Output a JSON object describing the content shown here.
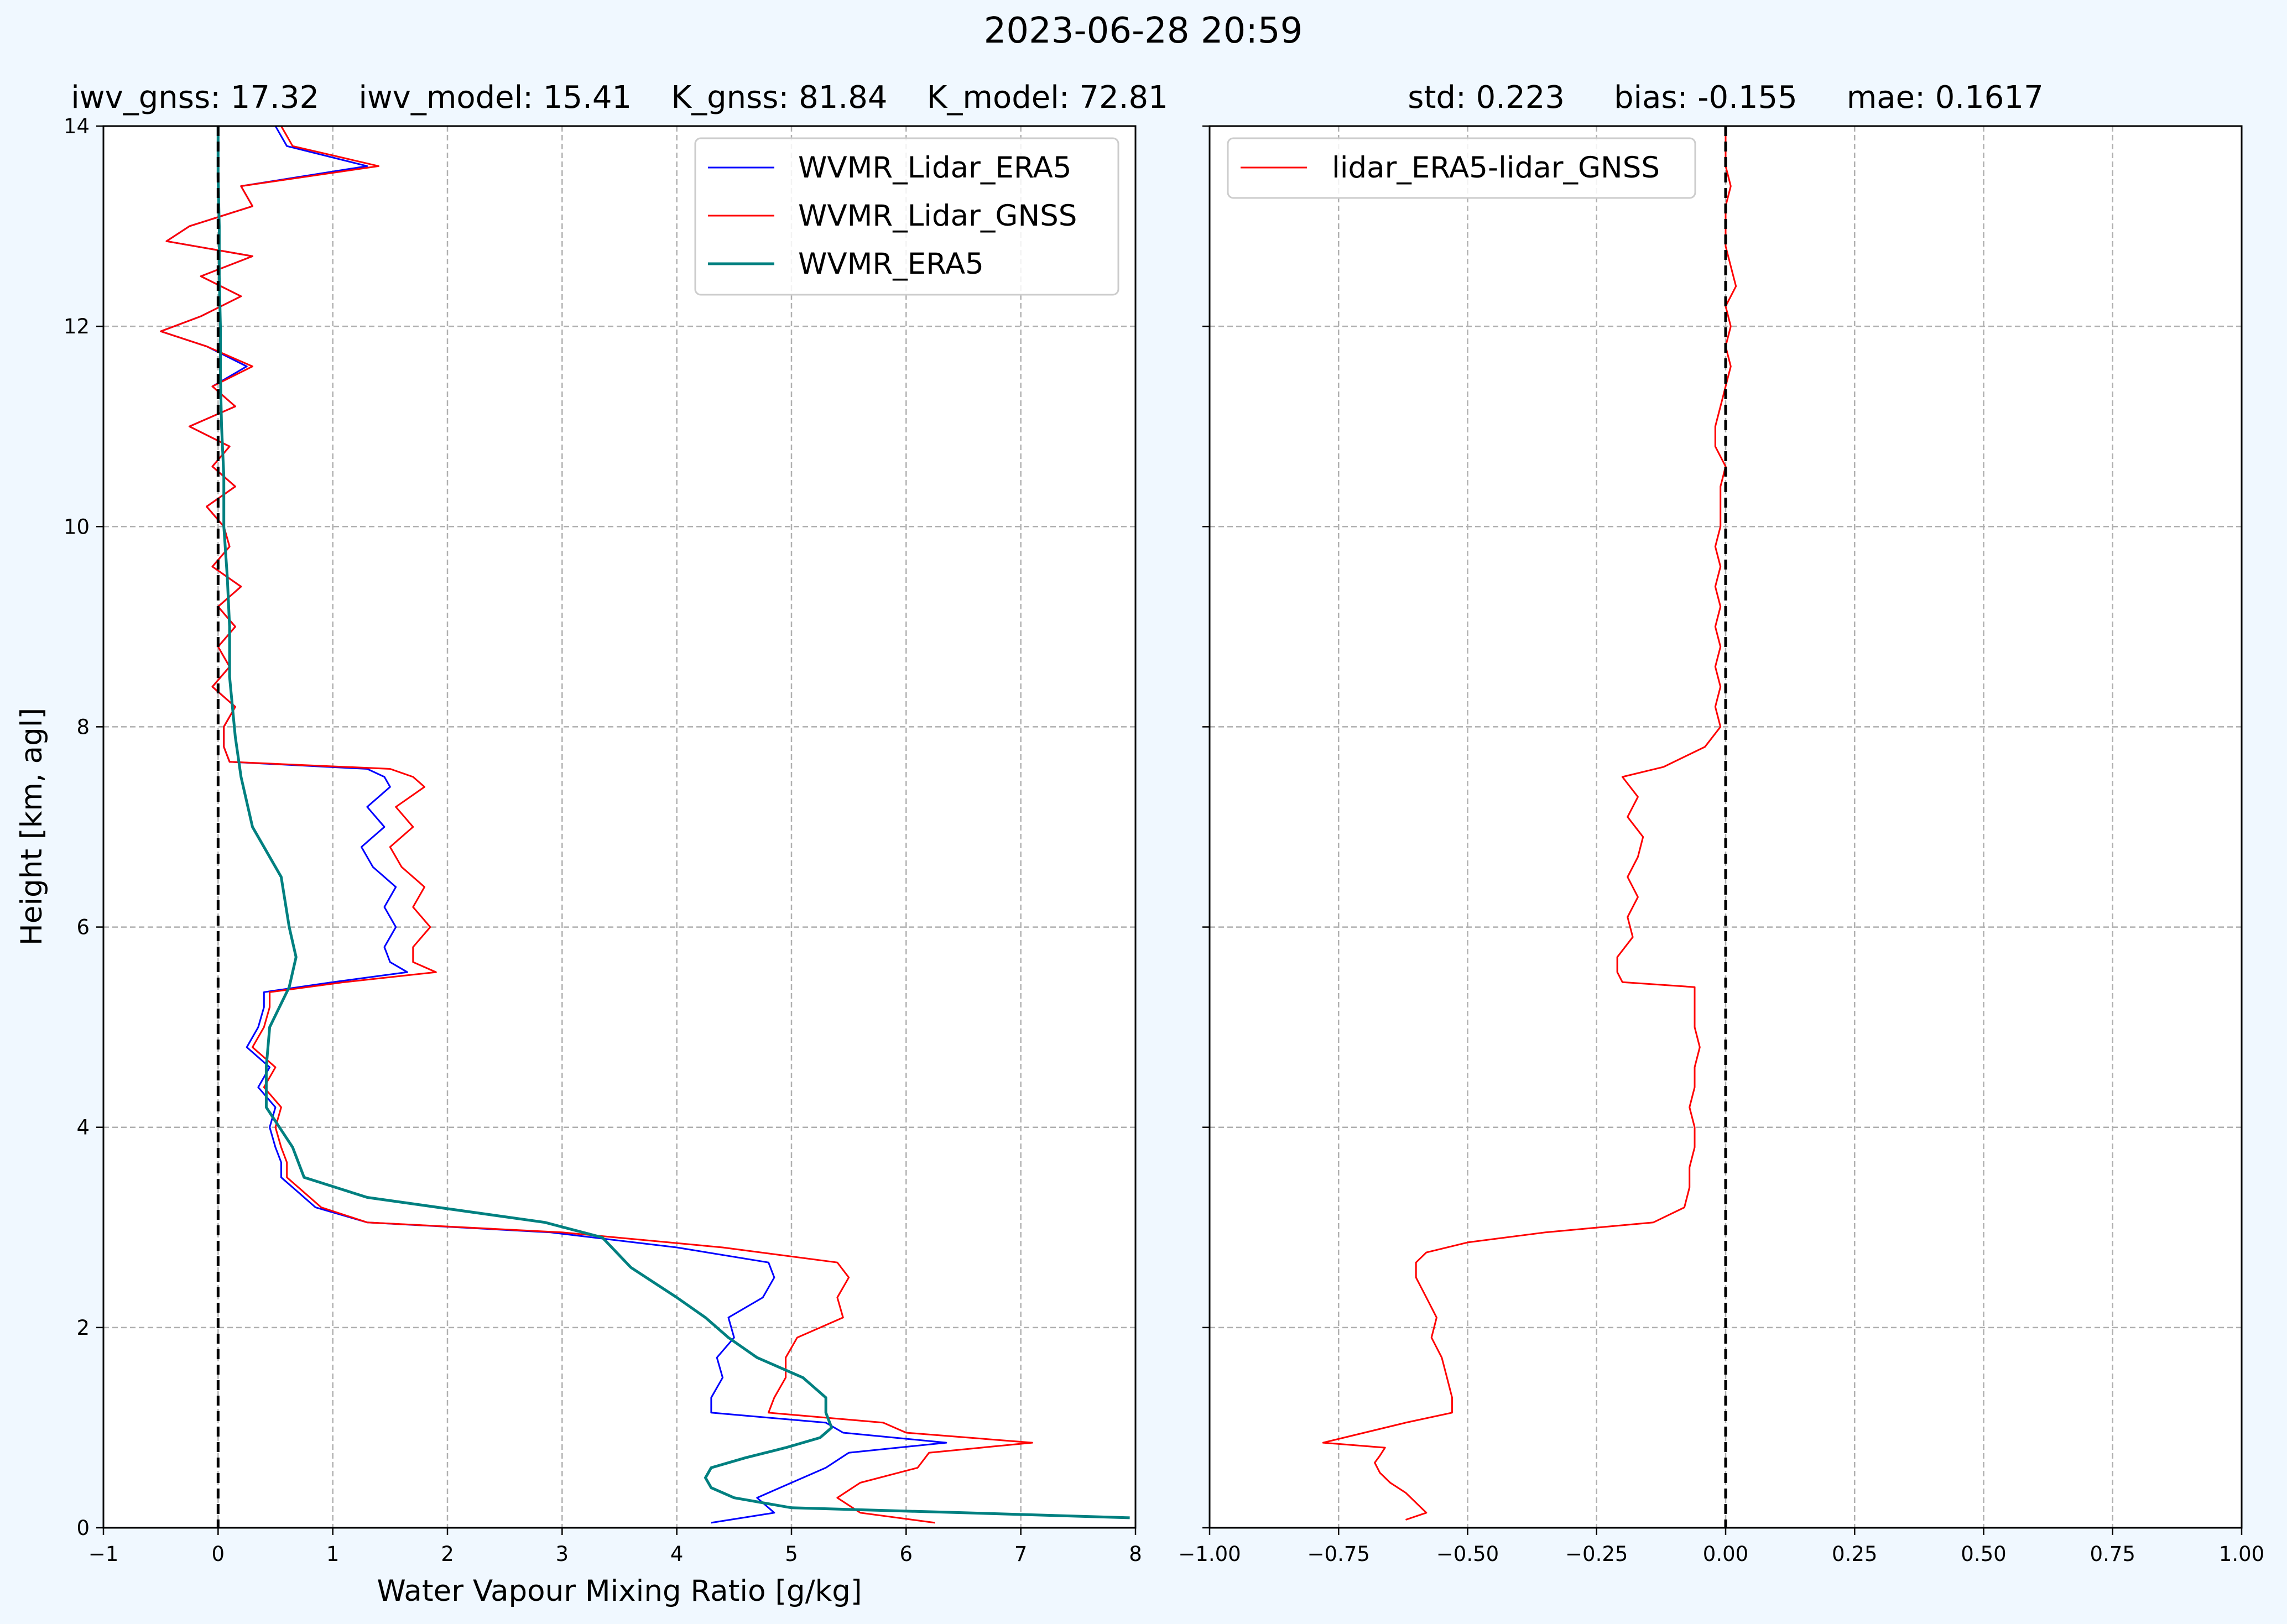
{
  "figure": {
    "suptitle": "2023-06-28 20:59",
    "background": "#f0f8ff"
  },
  "chart_data": [
    {
      "type": "line",
      "title": "iwv_gnss: 17.32    iwv_model: 15.41    K_gnss: 81.84    K_model: 72.81",
      "xlabel": "Water Vapour Mixing Ratio [g/kg]",
      "ylabel": "Height [km, agl]",
      "xlim": [
        -1,
        8
      ],
      "ylim": [
        0,
        14
      ],
      "xticks": [
        -1,
        0,
        1,
        2,
        3,
        4,
        5,
        6,
        7,
        8
      ],
      "yticks": [
        0,
        2,
        4,
        6,
        8,
        10,
        12,
        14
      ],
      "grid": true,
      "legend": "top-right",
      "reference_line_x": 0,
      "series": [
        {
          "name": "WVMR_Lidar_ERA5",
          "color": "#0000ff",
          "height_km": [
            0.05,
            0.15,
            0.3,
            0.45,
            0.6,
            0.75,
            0.85,
            0.95,
            1.05,
            1.15,
            1.3,
            1.5,
            1.7,
            1.9,
            2.1,
            2.3,
            2.5,
            2.65,
            2.8,
            2.95,
            3.05,
            3.2,
            3.35,
            3.5,
            3.65,
            3.8,
            4.0,
            4.2,
            4.4,
            4.6,
            4.8,
            5.0,
            5.2,
            5.35,
            5.45,
            5.55,
            5.65,
            5.8,
            6.0,
            6.2,
            6.4,
            6.6,
            6.8,
            7.0,
            7.2,
            7.4,
            7.5,
            7.58,
            7.65,
            7.8,
            8.0,
            8.2,
            8.4,
            8.6,
            8.8,
            9.0,
            9.2,
            9.4,
            9.6,
            9.8,
            10.0,
            10.2,
            10.4,
            10.6,
            10.8,
            11.0,
            11.2,
            11.4,
            11.6,
            11.8,
            11.95,
            12.1,
            12.3,
            12.5,
            12.7,
            12.85,
            13.0,
            13.2,
            13.4,
            13.6,
            13.8,
            14.0
          ],
          "wvmr": [
            4.3,
            4.85,
            4.7,
            5.0,
            5.3,
            5.5,
            6.35,
            5.45,
            5.3,
            4.3,
            4.3,
            4.4,
            4.35,
            4.5,
            4.45,
            4.75,
            4.85,
            4.8,
            4.0,
            2.9,
            1.3,
            0.85,
            0.7,
            0.55,
            0.55,
            0.5,
            0.45,
            0.5,
            0.35,
            0.45,
            0.25,
            0.35,
            0.4,
            0.4,
            1.0,
            1.65,
            1.5,
            1.45,
            1.55,
            1.45,
            1.55,
            1.35,
            1.25,
            1.45,
            1.3,
            1.5,
            1.45,
            1.3,
            0.1,
            0.05,
            0.05,
            0.15,
            -0.05,
            0.1,
            0.0,
            0.15,
            0.0,
            0.2,
            -0.05,
            0.1,
            0.05,
            -0.1,
            0.15,
            -0.05,
            0.1,
            -0.25,
            0.15,
            -0.05,
            0.25,
            -0.1,
            -0.5,
            -0.15,
            0.2,
            -0.15,
            0.3,
            -0.45,
            -0.25,
            0.3,
            0.2,
            1.3,
            0.6,
            0.5
          ]
        },
        {
          "name": "WVMR_Lidar_GNSS",
          "color": "#ff0000",
          "height_km": [
            0.05,
            0.15,
            0.3,
            0.45,
            0.6,
            0.75,
            0.85,
            0.95,
            1.05,
            1.15,
            1.3,
            1.5,
            1.7,
            1.9,
            2.1,
            2.3,
            2.5,
            2.65,
            2.8,
            2.95,
            3.05,
            3.2,
            3.35,
            3.5,
            3.65,
            3.8,
            4.0,
            4.2,
            4.4,
            4.6,
            4.8,
            5.0,
            5.2,
            5.35,
            5.45,
            5.55,
            5.65,
            5.8,
            6.0,
            6.2,
            6.4,
            6.6,
            6.8,
            7.0,
            7.2,
            7.4,
            7.5,
            7.58,
            7.65,
            7.8,
            8.0,
            8.2,
            8.4,
            8.6,
            8.8,
            9.0,
            9.2,
            9.4,
            9.6,
            9.8,
            10.0,
            10.2,
            10.4,
            10.6,
            10.8,
            11.0,
            11.2,
            11.4,
            11.6,
            11.8,
            11.95,
            12.1,
            12.3,
            12.5,
            12.7,
            12.85,
            13.0,
            13.2,
            13.4,
            13.6,
            13.8,
            14.0
          ],
          "wvmr": [
            6.25,
            5.6,
            5.4,
            5.6,
            6.1,
            6.2,
            7.1,
            6.0,
            5.8,
            4.8,
            4.85,
            4.95,
            4.95,
            5.05,
            5.45,
            5.4,
            5.5,
            5.4,
            4.4,
            3.0,
            1.3,
            0.9,
            0.75,
            0.6,
            0.6,
            0.55,
            0.5,
            0.55,
            0.4,
            0.5,
            0.3,
            0.4,
            0.45,
            0.45,
            1.1,
            1.9,
            1.7,
            1.7,
            1.85,
            1.7,
            1.8,
            1.6,
            1.5,
            1.7,
            1.55,
            1.8,
            1.7,
            1.5,
            0.1,
            0.05,
            0.05,
            0.15,
            -0.05,
            0.1,
            0.0,
            0.15,
            0.0,
            0.2,
            -0.05,
            0.1,
            0.05,
            -0.1,
            0.15,
            -0.05,
            0.1,
            -0.25,
            0.15,
            -0.05,
            0.3,
            -0.1,
            -0.5,
            -0.15,
            0.2,
            -0.15,
            0.3,
            -0.45,
            -0.25,
            0.3,
            0.2,
            1.4,
            0.65,
            0.55
          ]
        },
        {
          "name": "WVMR_ERA5",
          "color": "#008080",
          "height_km": [
            0.1,
            0.15,
            0.2,
            0.3,
            0.4,
            0.5,
            0.6,
            0.7,
            0.8,
            0.9,
            1.0,
            1.15,
            1.3,
            1.5,
            1.7,
            1.9,
            2.1,
            2.3,
            2.6,
            2.9,
            3.05,
            3.3,
            3.5,
            3.8,
            4.2,
            4.6,
            5.0,
            5.4,
            5.7,
            6.0,
            6.5,
            7.0,
            7.5,
            7.9,
            8.5,
            9.0,
            9.5,
            10.0,
            10.5,
            11.0,
            11.5,
            12.0,
            12.5,
            13.0,
            13.5,
            14.0
          ],
          "wvmr": [
            7.95,
            6.5,
            5.0,
            4.5,
            4.3,
            4.25,
            4.3,
            4.6,
            4.95,
            5.25,
            5.35,
            5.3,
            5.3,
            5.1,
            4.7,
            4.45,
            4.25,
            4.0,
            3.6,
            3.35,
            2.85,
            1.3,
            0.75,
            0.65,
            0.42,
            0.42,
            0.45,
            0.62,
            0.68,
            0.62,
            0.55,
            0.3,
            0.2,
            0.15,
            0.1,
            0.1,
            0.08,
            0.05,
            0.05,
            0.03,
            0.02,
            0.02,
            0.01,
            0.01,
            0.0,
            0.0
          ]
        }
      ]
    },
    {
      "type": "line",
      "title": "std: 0.223     bias: -0.155     mae: 0.1617",
      "xlabel": "",
      "ylabel": "",
      "xlim": [
        -1.0,
        1.0
      ],
      "ylim": [
        0,
        14
      ],
      "xticks": [
        -1.0,
        -0.75,
        -0.5,
        -0.25,
        0.0,
        0.25,
        0.5,
        0.75,
        1.0
      ],
      "xtick_labels": [
        "−1.00",
        "−0.75",
        "−0.50",
        "−0.25",
        "0.00",
        "0.25",
        "0.50",
        "0.75",
        "1.00"
      ],
      "yticks": [
        0,
        2,
        4,
        6,
        8,
        10,
        12,
        14
      ],
      "grid": true,
      "legend": "top-left",
      "reference_line_x": 0,
      "series": [
        {
          "name": "lidar_ERA5-lidar_GNSS",
          "color": "#ff0000",
          "height_km": [
            0.08,
            0.15,
            0.25,
            0.35,
            0.45,
            0.55,
            0.65,
            0.72,
            0.8,
            0.85,
            0.95,
            1.05,
            1.15,
            1.3,
            1.5,
            1.7,
            1.9,
            2.1,
            2.3,
            2.5,
            2.65,
            2.75,
            2.85,
            2.95,
            3.05,
            3.2,
            3.4,
            3.6,
            3.8,
            4.0,
            4.2,
            4.4,
            4.6,
            4.8,
            5.0,
            5.2,
            5.4,
            5.45,
            5.55,
            5.7,
            5.9,
            6.1,
            6.3,
            6.5,
            6.7,
            6.9,
            7.1,
            7.3,
            7.5,
            7.6,
            7.8,
            8.0,
            8.2,
            8.4,
            8.6,
            8.8,
            9.0,
            9.2,
            9.4,
            9.6,
            9.8,
            10.0,
            10.2,
            10.4,
            10.6,
            10.8,
            11.0,
            11.2,
            11.4,
            11.6,
            11.8,
            12.0,
            12.2,
            12.4,
            12.6,
            12.8,
            13.0,
            13.2,
            13.4,
            13.6,
            13.8,
            14.0
          ],
          "diff": [
            -0.62,
            -0.58,
            -0.6,
            -0.62,
            -0.65,
            -0.67,
            -0.68,
            -0.67,
            -0.66,
            -0.78,
            -0.7,
            -0.62,
            -0.53,
            -0.53,
            -0.54,
            -0.55,
            -0.57,
            -0.56,
            -0.58,
            -0.6,
            -0.6,
            -0.58,
            -0.5,
            -0.35,
            -0.14,
            -0.08,
            -0.07,
            -0.07,
            -0.06,
            -0.06,
            -0.07,
            -0.06,
            -0.06,
            -0.05,
            -0.06,
            -0.06,
            -0.06,
            -0.2,
            -0.21,
            -0.21,
            -0.18,
            -0.19,
            -0.17,
            -0.19,
            -0.17,
            -0.16,
            -0.19,
            -0.17,
            -0.2,
            -0.12,
            -0.04,
            -0.01,
            -0.02,
            -0.01,
            -0.02,
            -0.01,
            -0.02,
            -0.01,
            -0.02,
            -0.01,
            -0.02,
            -0.01,
            -0.01,
            -0.01,
            0.0,
            -0.02,
            -0.02,
            -0.01,
            0.0,
            0.01,
            0.0,
            0.01,
            0.0,
            0.02,
            0.01,
            0.0,
            0.0,
            0.0,
            0.01,
            0.0,
            0.0,
            0.0
          ]
        }
      ]
    }
  ]
}
